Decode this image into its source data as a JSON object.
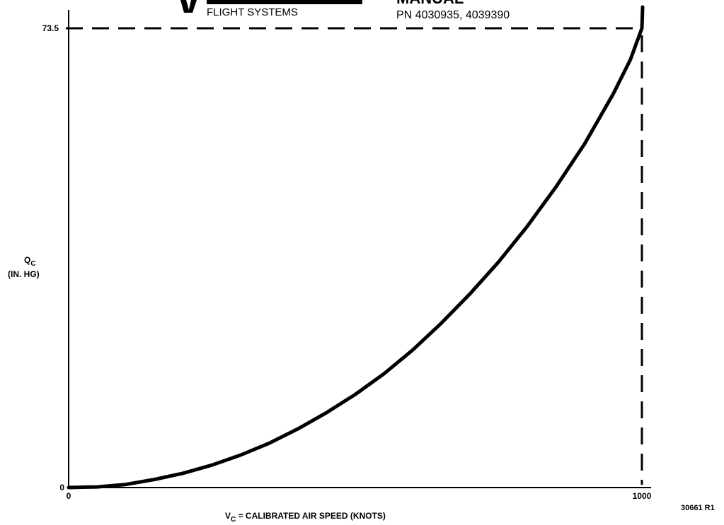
{
  "header": {
    "brand_text": "FLIGHT SYSTEMS",
    "doc_title_fragment": "MANUAL",
    "part_numbers": "PN 4030935, 4039390"
  },
  "figure_number": "30661 R1",
  "chart_data": {
    "type": "line",
    "title": "",
    "xlabel": "V",
    "xlabel_sub": "C",
    "xlabel_rest": " = CALIBRATED AIR SPEED (KNOTS)",
    "ylabel": "Q",
    "ylabel_sub": "C",
    "ylabel_unit": "(IN. HG)",
    "xlim": [
      0,
      1000
    ],
    "ylim": [
      0,
      73.5
    ],
    "x_ticks": [
      {
        "value": 0,
        "label": "0"
      },
      {
        "value": 1000,
        "label": "1000"
      }
    ],
    "y_ticks": [
      {
        "value": 0,
        "label": "0"
      },
      {
        "value": 73.5,
        "label": "73.5"
      }
    ],
    "reference_lines": [
      {
        "axis": "y",
        "value": 73.5,
        "style": "dashed"
      },
      {
        "axis": "x",
        "value": 1000,
        "style": "dashed"
      }
    ],
    "grid": false,
    "series": [
      {
        "x": [
          0,
          50,
          100,
          150,
          200,
          250,
          300,
          350,
          400,
          450,
          500,
          550,
          600,
          650,
          700,
          750,
          800,
          850,
          900,
          950,
          980,
          1000
        ],
        "y": [
          0,
          0.1,
          0.5,
          1.3,
          2.3,
          3.6,
          5.2,
          7.1,
          9.4,
          12.0,
          14.9,
          18.2,
          22.0,
          26.3,
          31.0,
          36.1,
          41.8,
          48.1,
          55.0,
          63.0,
          68.5,
          73.5
        ]
      }
    ]
  }
}
